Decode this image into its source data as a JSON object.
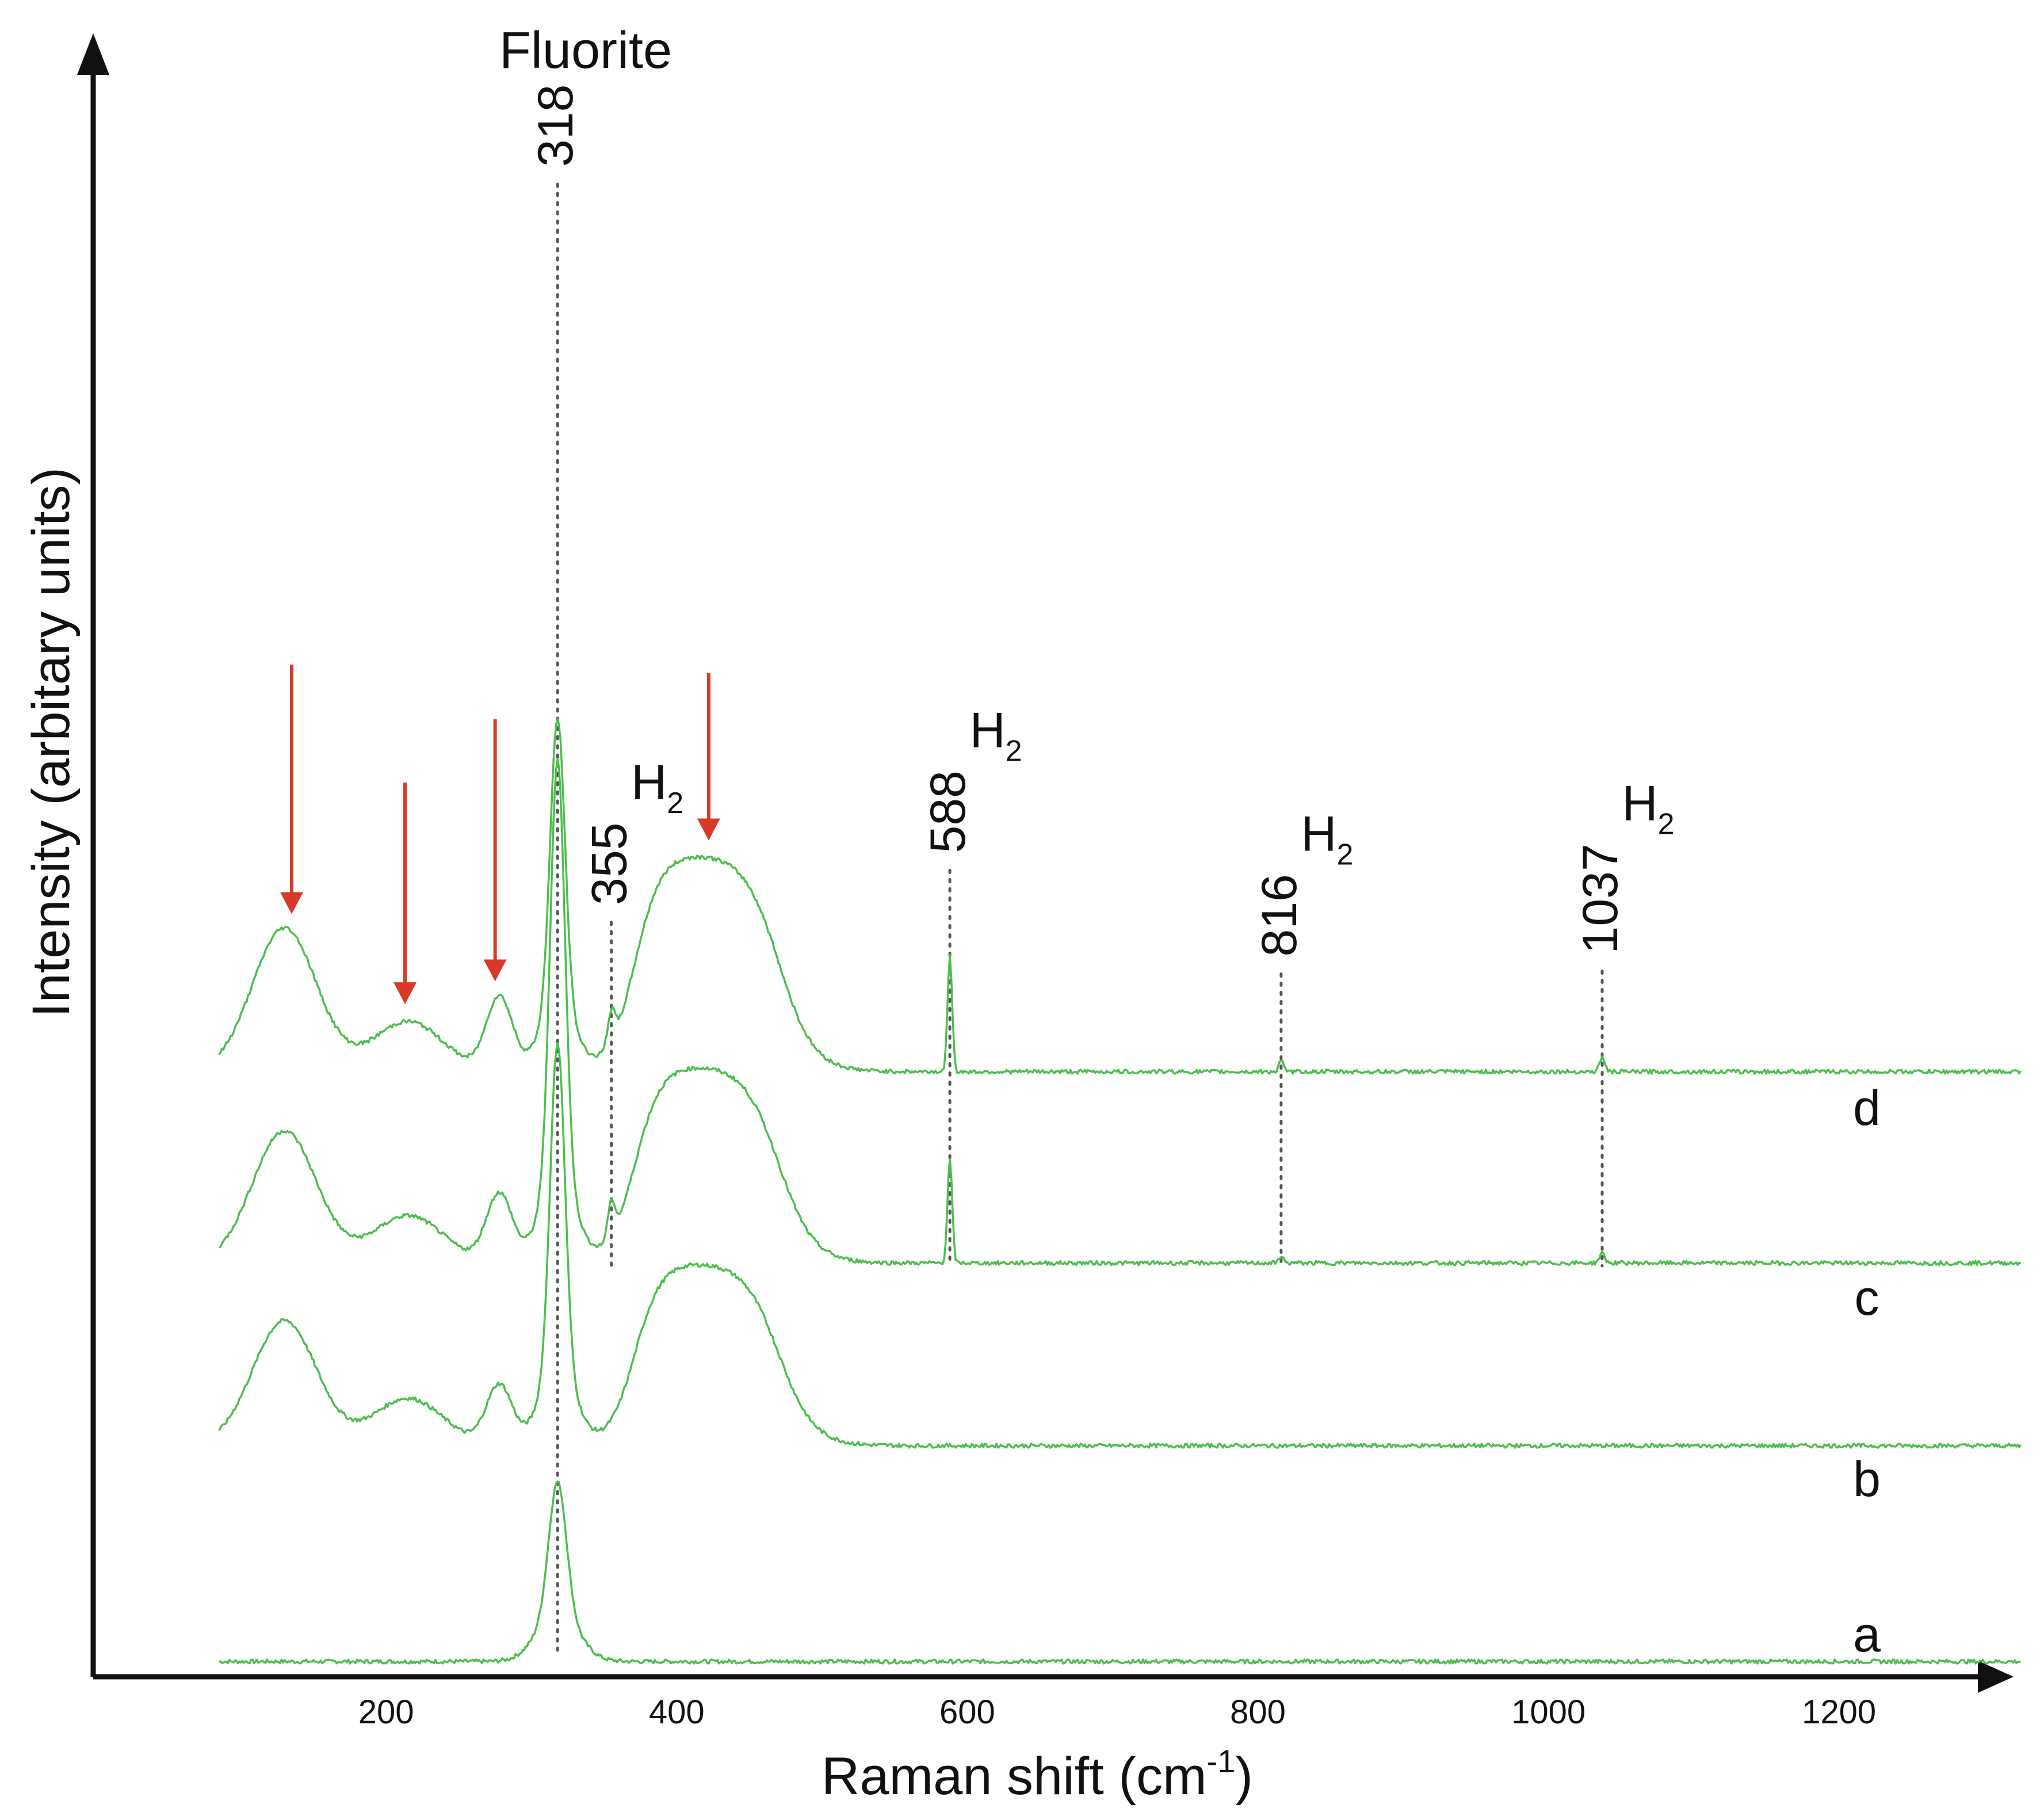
{
  "chart_data": {
    "type": "line",
    "xlabel": "Raman shift (cm",
    "xlabel_sup": "-1",
    "xlabel_end": ")",
    "ylabel": "Intensity (arbitary units)",
    "xlim": [
      55,
      1330
    ],
    "x_ticks": [
      200,
      400,
      600,
      800,
      1000,
      1200
    ],
    "x_tick_labels": [
      "200",
      "400",
      "600",
      "800",
      "1000",
      "1200"
    ],
    "grid": false,
    "top_annotation": "Fluorite",
    "line_color": "#4cbf4c",
    "arrow_color": "#d83a2a",
    "marker_color": "#555555",
    "peak_markers": [
      {
        "x": 318,
        "label": "318",
        "species": ""
      },
      {
        "x": 355,
        "label": "355",
        "species": "H",
        "sub": "2"
      },
      {
        "x": 588,
        "label": "588",
        "species": "H",
        "sub": "2"
      },
      {
        "x": 816,
        "label": "816",
        "species": "H",
        "sub": "2"
      },
      {
        "x": 1037,
        "label": "1037",
        "species": "H",
        "sub": "2"
      }
    ],
    "arrows_x": [
      135,
      213,
      275,
      422
    ],
    "series": [
      {
        "name": "a",
        "baseline": 0.05,
        "tail": 0.05,
        "features": [
          {
            "x": 318,
            "amp": 0.92,
            "width": 6
          },
          {
            "x": 318,
            "amp": 0.33,
            "width": 14
          }
        ]
      },
      {
        "name": "b",
        "baseline": 1.55,
        "tail": 1.55,
        "features": [
          {
            "x": 318,
            "amp": 2.25,
            "width": 5
          },
          {
            "x": 318,
            "amp": 0.55,
            "width": 12
          },
          {
            "x": 130,
            "amp": 0.87,
            "width": 22
          },
          {
            "x": 215,
            "amp": 0.33,
            "width": 24
          },
          {
            "x": 278,
            "amp": 0.42,
            "width": 9
          },
          {
            "x": 418,
            "amp": 1.28,
            "width": 55,
            "kind": "plateau"
          }
        ]
      },
      {
        "name": "c",
        "baseline": 2.82,
        "tail": 2.82,
        "features": [
          {
            "x": 318,
            "amp": 2.9,
            "width": 5
          },
          {
            "x": 318,
            "amp": 0.6,
            "width": 12
          },
          {
            "x": 130,
            "amp": 0.92,
            "width": 22
          },
          {
            "x": 215,
            "amp": 0.33,
            "width": 24
          },
          {
            "x": 278,
            "amp": 0.48,
            "width": 9
          },
          {
            "x": 355,
            "amp": 0.24,
            "width": 2.5
          },
          {
            "x": 418,
            "amp": 1.38,
            "width": 55,
            "kind": "plateau"
          },
          {
            "x": 588,
            "amp": 0.72,
            "width": 1.6
          },
          {
            "x": 816,
            "amp": 0.05,
            "width": 1.5
          },
          {
            "x": 1037,
            "amp": 0.07,
            "width": 1.8
          }
        ]
      },
      {
        "name": "d",
        "baseline": 4.15,
        "tail": 4.15,
        "features": [
          {
            "x": 318,
            "amp": 2.0,
            "width": 5
          },
          {
            "x": 318,
            "amp": 0.45,
            "width": 12
          },
          {
            "x": 130,
            "amp": 1.0,
            "width": 22
          },
          {
            "x": 215,
            "amp": 0.35,
            "width": 24
          },
          {
            "x": 278,
            "amp": 0.52,
            "width": 9
          },
          {
            "x": 355,
            "amp": 0.22,
            "width": 2.5
          },
          {
            "x": 418,
            "amp": 1.52,
            "width": 55,
            "kind": "plateau"
          },
          {
            "x": 588,
            "amp": 0.8,
            "width": 1.6
          },
          {
            "x": 816,
            "amp": 0.08,
            "width": 1.5
          },
          {
            "x": 1037,
            "amp": 0.1,
            "width": 1.8
          }
        ]
      }
    ]
  }
}
